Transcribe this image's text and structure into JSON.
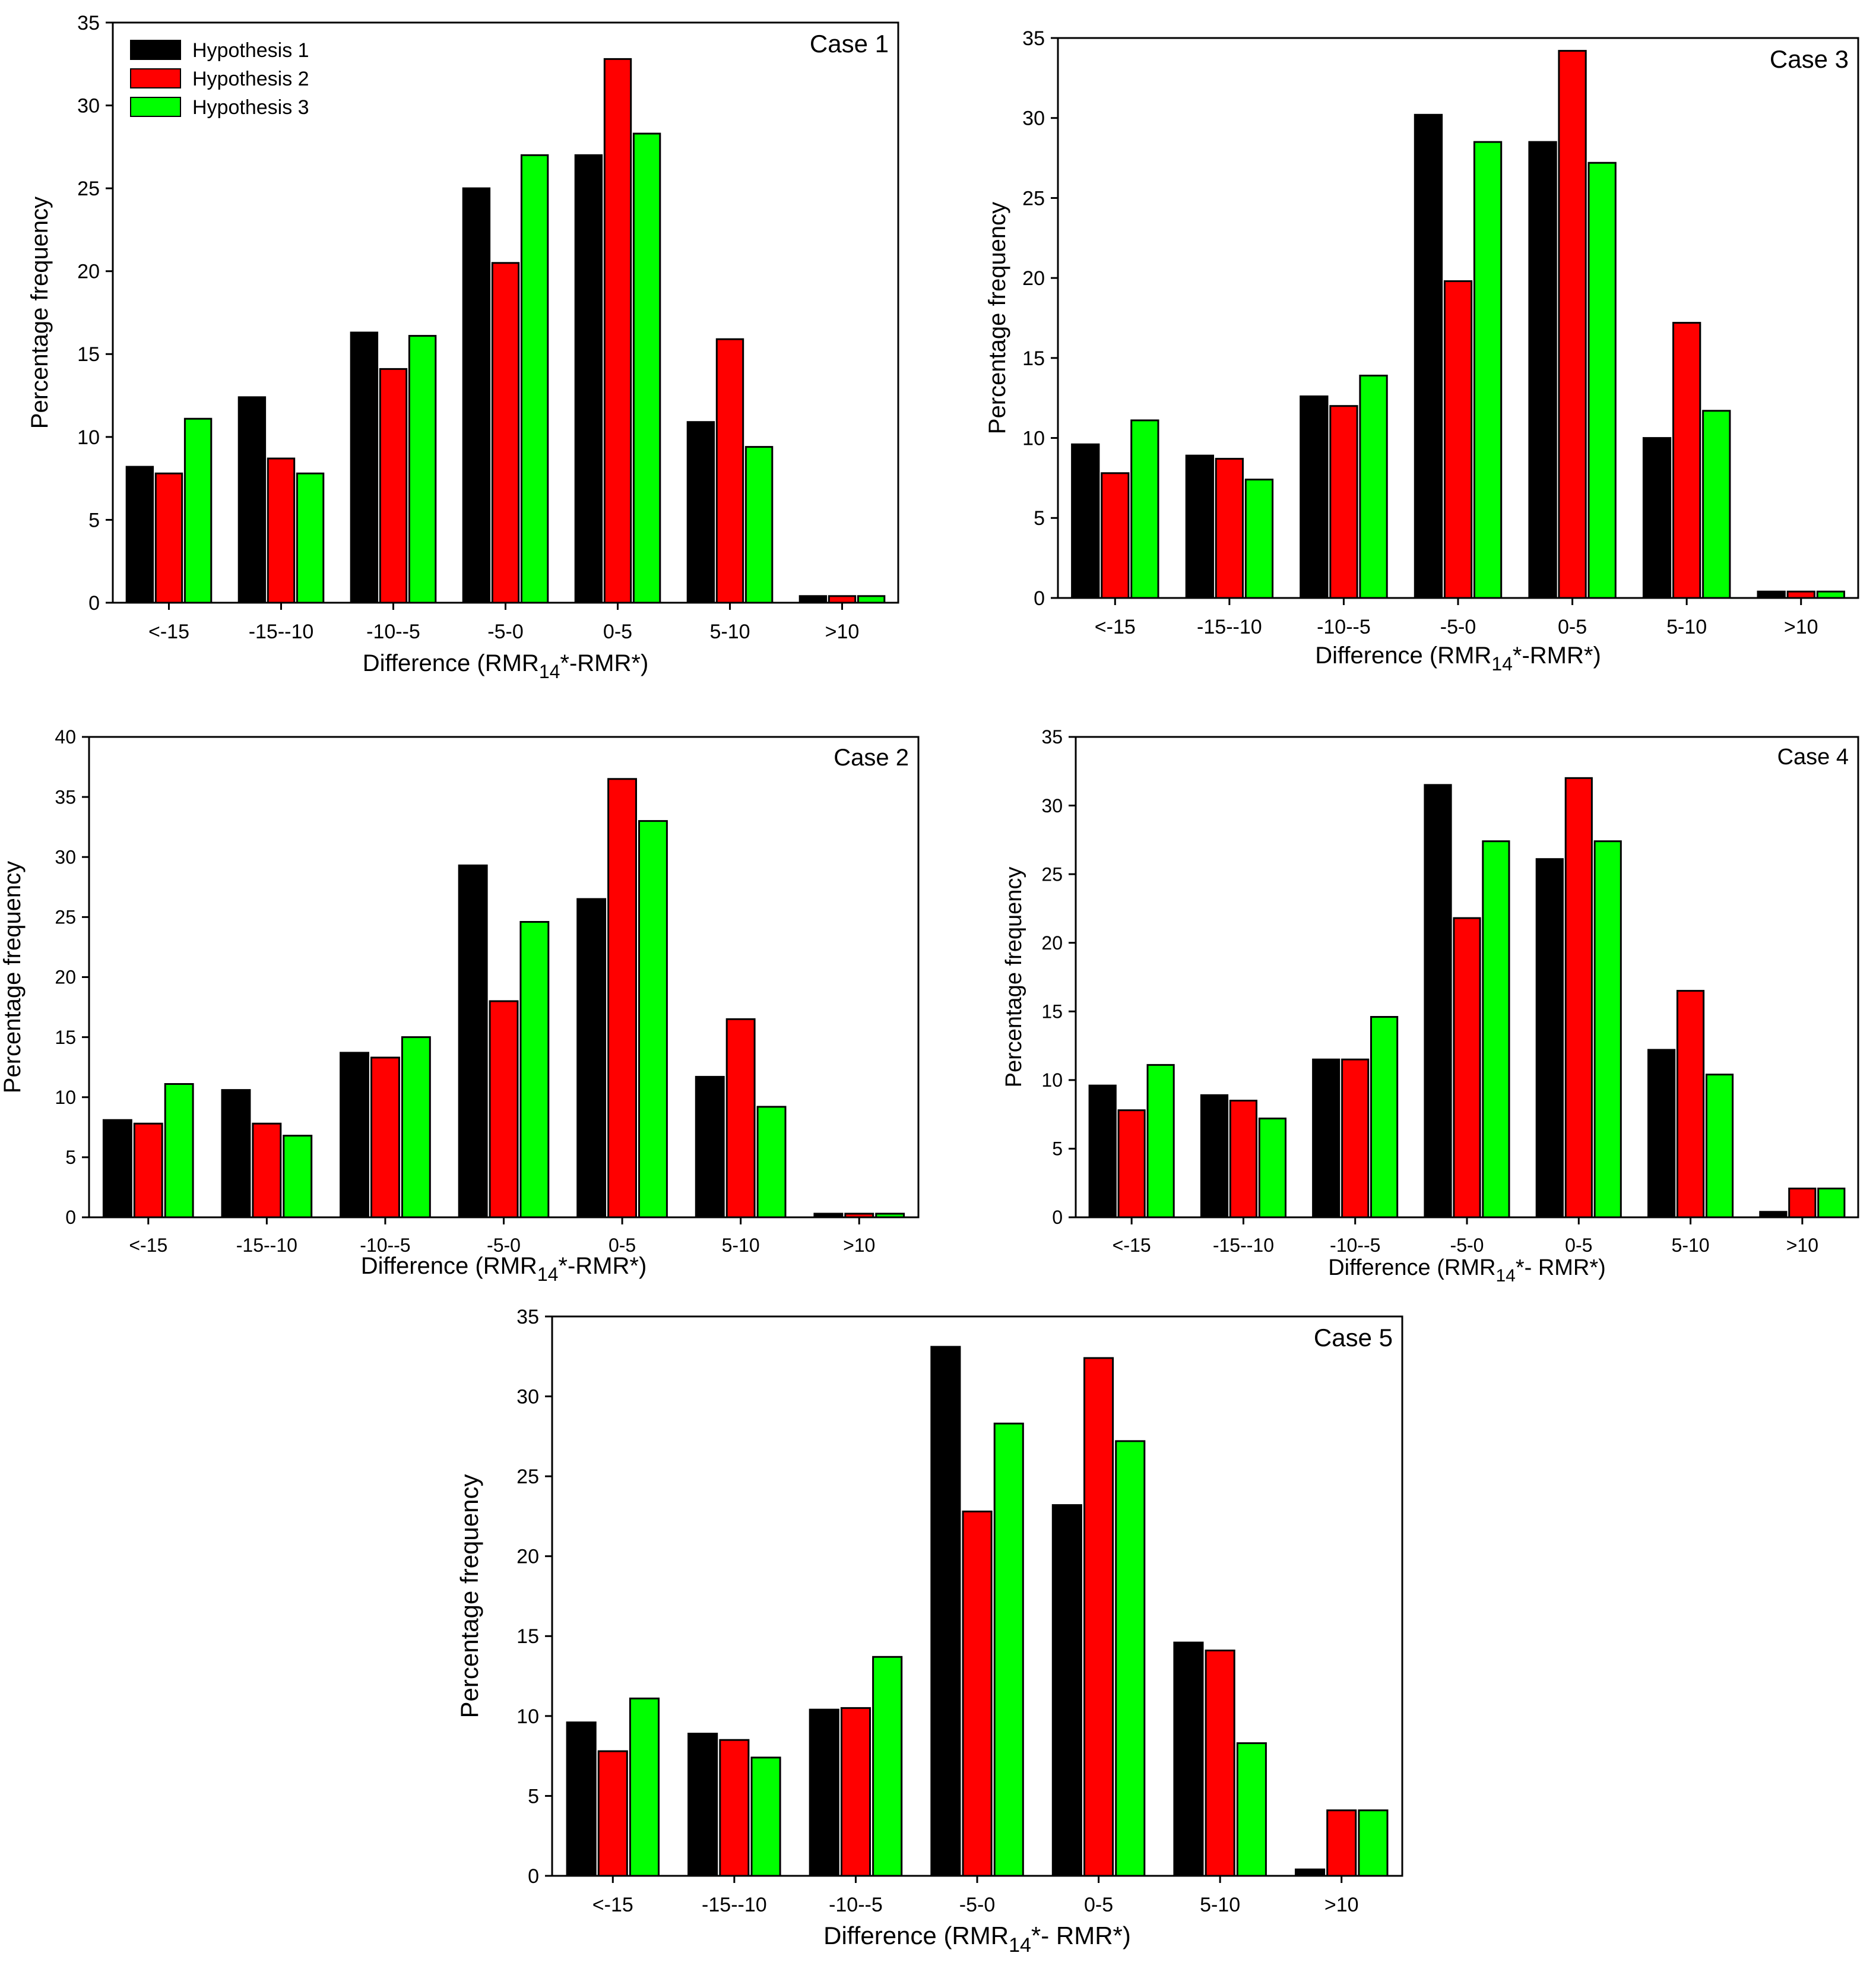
{
  "legend": {
    "entries": [
      {
        "name": "Hypothesis 1",
        "color": "#000000"
      },
      {
        "name": "Hypothesis 2",
        "color": "#ff0000"
      },
      {
        "name": "Hypothesis 3",
        "color": "#00ff00"
      }
    ]
  },
  "chart_data": [
    {
      "type": "bar",
      "title": "Case 1",
      "xlabel": {
        "prefix": "Difference (RMR",
        "sub": "14",
        "suffix": "*-RMR*)"
      },
      "ylabel": "Percentage frequency",
      "ylim": [
        0,
        35
      ],
      "yticks": [
        0,
        5,
        10,
        15,
        20,
        25,
        30,
        35
      ],
      "categories": [
        "<-15",
        "-15--10",
        "-10--5",
        "-5-0",
        "0-5",
        "5-10",
        ">10"
      ],
      "series": [
        {
          "name": "Hypothesis 1",
          "color": "#000000",
          "values": [
            8.2,
            12.4,
            16.3,
            25.0,
            27.0,
            10.9,
            0.4
          ]
        },
        {
          "name": "Hypothesis 2",
          "color": "#ff0000",
          "values": [
            7.8,
            8.7,
            14.1,
            20.5,
            32.8,
            15.9,
            0.4
          ]
        },
        {
          "name": "Hypothesis 3",
          "color": "#00ff00",
          "values": [
            11.1,
            7.8,
            16.1,
            27.0,
            28.3,
            9.4,
            0.4
          ]
        }
      ]
    },
    {
      "type": "bar",
      "title": "Case 3",
      "xlabel": {
        "prefix": "Difference (RMR",
        "sub": "14",
        "suffix": "*-RMR*)"
      },
      "ylabel": "Percentage frequency",
      "ylim": [
        0,
        35
      ],
      "yticks": [
        0,
        5,
        10,
        15,
        20,
        25,
        30,
        35
      ],
      "categories": [
        "<-15",
        "-15--10",
        "-10--5",
        "-5-0",
        "0-5",
        "5-10",
        ">10"
      ],
      "series": [
        {
          "name": "Hypothesis 1",
          "color": "#000000",
          "values": [
            9.6,
            8.9,
            12.6,
            30.2,
            28.5,
            10.0,
            0.4
          ]
        },
        {
          "name": "Hypothesis 2",
          "color": "#ff0000",
          "values": [
            7.8,
            8.7,
            12.0,
            19.8,
            34.2,
            17.2,
            0.4
          ]
        },
        {
          "name": "Hypothesis 3",
          "color": "#00ff00",
          "values": [
            11.1,
            7.4,
            13.9,
            28.5,
            27.2,
            11.7,
            0.4
          ]
        }
      ]
    },
    {
      "type": "bar",
      "title": "Case 2",
      "xlabel": {
        "prefix": "Difference (RMR",
        "sub": "14",
        "suffix": "*-RMR*)"
      },
      "ylabel": "Percentage frequency",
      "ylim": [
        0,
        40
      ],
      "yticks": [
        0,
        5,
        10,
        15,
        20,
        25,
        30,
        35,
        40
      ],
      "categories": [
        "<-15",
        "-15--10",
        "-10--5",
        "-5-0",
        "0-5",
        "5-10",
        ">10"
      ],
      "series": [
        {
          "name": "Hypothesis 1",
          "color": "#000000",
          "values": [
            8.1,
            10.6,
            13.7,
            29.3,
            26.5,
            11.7,
            0.3
          ]
        },
        {
          "name": "Hypothesis 2",
          "color": "#ff0000",
          "values": [
            7.8,
            7.8,
            13.3,
            18.0,
            36.5,
            16.5,
            0.3
          ]
        },
        {
          "name": "Hypothesis 3",
          "color": "#00ff00",
          "values": [
            11.1,
            6.8,
            15.0,
            24.6,
            33.0,
            9.2,
            0.3
          ]
        }
      ]
    },
    {
      "type": "bar",
      "title": "Case 4",
      "xlabel": {
        "prefix": "Difference (RMR",
        "sub": "14",
        "suffix": "*- RMR*)"
      },
      "ylabel": "Percentage frequency",
      "ylim": [
        0,
        35
      ],
      "yticks": [
        0,
        5,
        10,
        15,
        20,
        25,
        30,
        35
      ],
      "categories": [
        "<-15",
        "-15--10",
        "-10--5",
        "-5-0",
        "0-5",
        "5-10",
        ">10"
      ],
      "series": [
        {
          "name": "Hypothesis 1",
          "color": "#000000",
          "values": [
            9.6,
            8.9,
            11.5,
            31.5,
            26.1,
            12.2,
            0.4
          ]
        },
        {
          "name": "Hypothesis 2",
          "color": "#ff0000",
          "values": [
            7.8,
            8.5,
            11.5,
            21.8,
            32.0,
            16.5,
            2.1
          ]
        },
        {
          "name": "Hypothesis 3",
          "color": "#00ff00",
          "values": [
            11.1,
            7.2,
            14.6,
            27.4,
            27.4,
            10.4,
            2.1
          ]
        }
      ]
    },
    {
      "type": "bar",
      "title": "Case 5",
      "xlabel": {
        "prefix": "Difference (RMR",
        "sub": "14",
        "suffix": "*- RMR*)"
      },
      "ylabel": "Percentage frequency",
      "ylim": [
        0,
        35
      ],
      "yticks": [
        0,
        5,
        10,
        15,
        20,
        25,
        30,
        35
      ],
      "categories": [
        "<-15",
        "-15--10",
        "-10--5",
        "-5-0",
        "0-5",
        "5-10",
        ">10"
      ],
      "series": [
        {
          "name": "Hypothesis 1",
          "color": "#000000",
          "values": [
            9.6,
            8.9,
            10.4,
            33.1,
            23.2,
            14.6,
            0.4
          ]
        },
        {
          "name": "Hypothesis 2",
          "color": "#ff0000",
          "values": [
            7.8,
            8.5,
            10.5,
            22.8,
            32.4,
            14.1,
            4.1
          ]
        },
        {
          "name": "Hypothesis 3",
          "color": "#00ff00",
          "values": [
            11.1,
            7.4,
            13.7,
            28.3,
            27.2,
            8.3,
            4.1
          ]
        }
      ]
    }
  ]
}
